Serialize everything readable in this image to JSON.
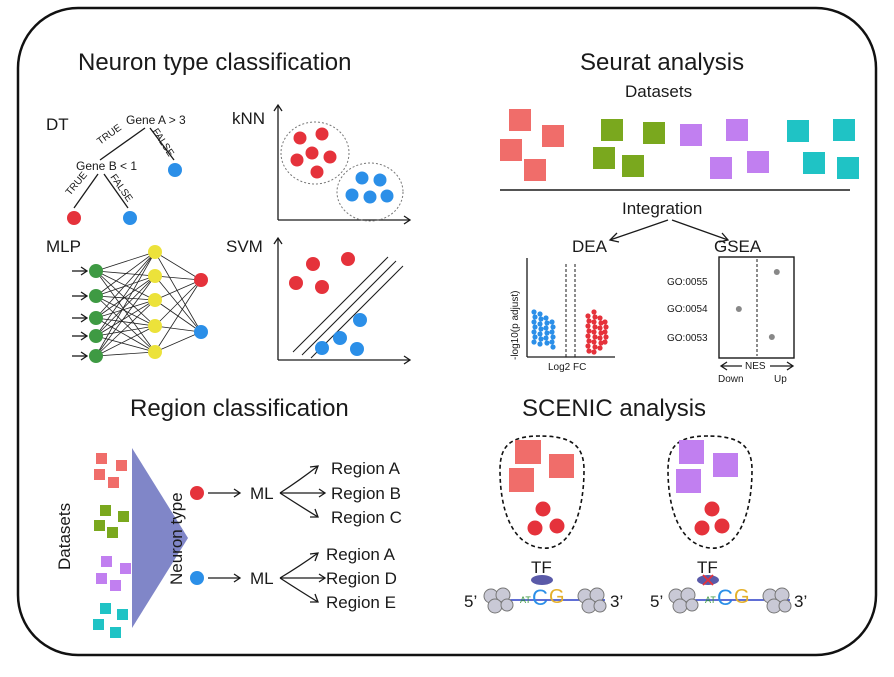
{
  "colors": {
    "red": "#e5323b",
    "blue": "#2b8fe8",
    "green": "#3e9a43",
    "yellow": "#ece23a",
    "salmon": "#f06d6a",
    "olive": "#7aa81e",
    "violet": "#c17ff0",
    "teal": "#1fc3c5",
    "grey": "#888888",
    "dark_blue": "#2b3fc7"
  },
  "neuron_type": {
    "title": "Neuron type classification",
    "dt": {
      "label": "DT",
      "root": "Gene A > 3",
      "child": "Gene B < 1",
      "true1": "TRUE",
      "false1": "FALSE",
      "true2": "TRUE",
      "false2": "FALSE"
    },
    "knn_label": "kNN",
    "mlp_label": "MLP",
    "svm_label": "SVM"
  },
  "seurat": {
    "title": "Seurat analysis",
    "datasets": "Datasets",
    "integration": "Integration",
    "dea": "DEA",
    "gsea": "GSEA",
    "volcano": {
      "ylabel": "-log10(p adjust)",
      "xlabel": "Log2 FC"
    },
    "gsea_plot": {
      "terms": [
        "GO:0055",
        "GO:0054",
        "GO:0053"
      ],
      "nes_values": [
        0.6,
        -0.55,
        0.45
      ],
      "xlabel": "NES",
      "down": "Down",
      "up": "Up"
    }
  },
  "region": {
    "title": "Region classification",
    "datasets": "Datasets",
    "neuron_type": "Neuron type",
    "ml": "ML",
    "regions_a": [
      "Region A",
      "Region B",
      "Region C"
    ],
    "regions_b": [
      "Region A",
      "Region D",
      "Region E"
    ]
  },
  "scenic": {
    "title": "SCENIC analysis",
    "tf": "TF",
    "five_prime": "5’",
    "three_prime": "3’",
    "motif_small": "AT",
    "motif_c": "C",
    "motif_g": "G"
  }
}
